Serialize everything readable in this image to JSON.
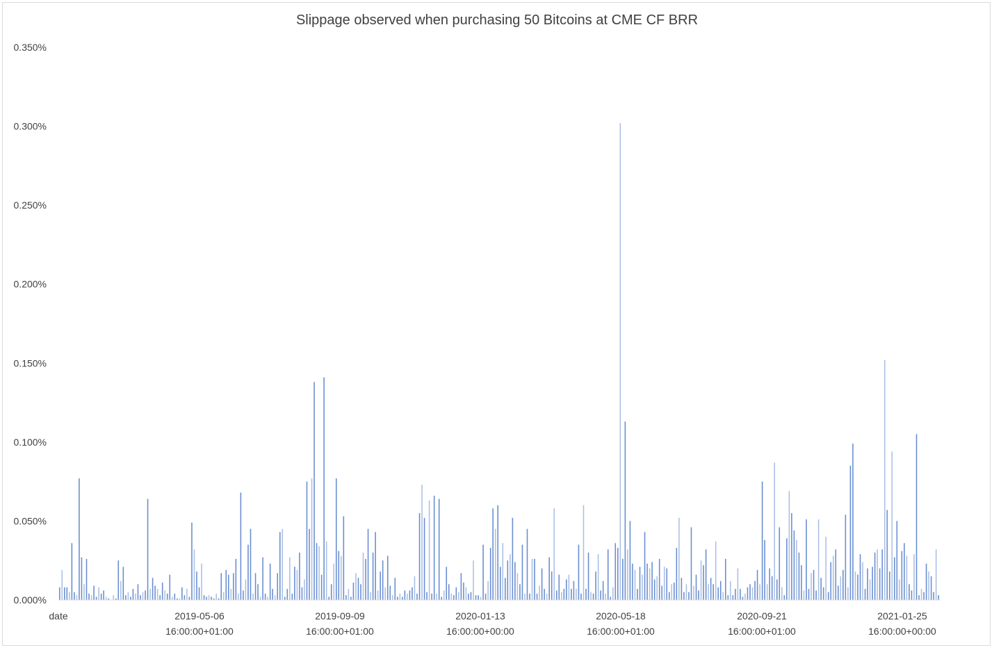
{
  "chart_data": {
    "type": "bar",
    "title": "Slippage observed when purchasing 50 Bitcoins at CME CF BRR",
    "xlabel": "",
    "ylabel": "",
    "ylim": [
      0,
      0.35
    ],
    "y_unit": "%",
    "y_ticks": [
      "0.000%",
      "0.050%",
      "0.100%",
      "0.150%",
      "0.200%",
      "0.250%",
      "0.300%",
      "0.350%"
    ],
    "x_ticks": [
      {
        "line1": "date",
        "line2": ""
      },
      {
        "line1": "2019-05-06",
        "line2": "16:00:00+01:00"
      },
      {
        "line1": "2019-09-09",
        "line2": "16:00:00+01:00"
      },
      {
        "line1": "2020-01-13",
        "line2": "16:00:00+00:00"
      },
      {
        "line1": "2020-05-18",
        "line2": "16:00:00+01:00"
      },
      {
        "line1": "2020-09-21",
        "line2": "16:00:00+01:00"
      },
      {
        "line1": "2021-01-25",
        "line2": "16:00:00+00:00"
      }
    ],
    "grid": false,
    "legend": "none",
    "series_color": "#4472c4",
    "values": [
      0.008,
      0.019,
      0.008,
      0.008,
      0.005,
      0.036,
      0.005,
      0.003,
      0.077,
      0.027,
      0.01,
      0.026,
      0.004,
      0.003,
      0.009,
      0.002,
      0.008,
      0.004,
      0.006,
      0.002,
      0.001,
      0.0,
      0.003,
      0.001,
      0.025,
      0.012,
      0.021,
      0.003,
      0.005,
      0.002,
      0.007,
      0.004,
      0.01,
      0.003,
      0.005,
      0.006,
      0.064,
      0.007,
      0.014,
      0.009,
      0.007,
      0.003,
      0.011,
      0.006,
      0.004,
      0.016,
      0.002,
      0.004,
      0.001,
      0.001,
      0.008,
      0.003,
      0.007,
      0.002,
      0.049,
      0.032,
      0.018,
      0.008,
      0.023,
      0.003,
      0.002,
      0.003,
      0.002,
      0.001,
      0.004,
      0.001,
      0.017,
      0.005,
      0.019,
      0.016,
      0.007,
      0.017,
      0.026,
      0.004,
      0.068,
      0.006,
      0.013,
      0.035,
      0.045,
      0.004,
      0.017,
      0.01,
      0.002,
      0.027,
      0.004,
      0.002,
      0.023,
      0.007,
      0.003,
      0.017,
      0.043,
      0.045,
      0.002,
      0.007,
      0.027,
      0.004,
      0.021,
      0.019,
      0.03,
      0.008,
      0.013,
      0.075,
      0.045,
      0.077,
      0.138,
      0.036,
      0.034,
      0.016,
      0.141,
      0.037,
      0.002,
      0.01,
      0.023,
      0.077,
      0.031,
      0.028,
      0.053,
      0.003,
      0.007,
      0.002,
      0.011,
      0.017,
      0.014,
      0.01,
      0.03,
      0.026,
      0.045,
      0.005,
      0.03,
      0.043,
      0.006,
      0.018,
      0.025,
      0.008,
      0.028,
      0.009,
      0.003,
      0.014,
      0.002,
      0.004,
      0.002,
      0.006,
      0.004,
      0.006,
      0.008,
      0.015,
      0.004,
      0.055,
      0.073,
      0.052,
      0.005,
      0.063,
      0.004,
      0.066,
      0.004,
      0.064,
      0.002,
      0.006,
      0.021,
      0.01,
      0.004,
      0.003,
      0.008,
      0.005,
      0.017,
      0.011,
      0.008,
      0.004,
      0.005,
      0.025,
      0.003,
      0.003,
      0.002,
      0.035,
      0.004,
      0.012,
      0.033,
      0.058,
      0.045,
      0.06,
      0.021,
      0.036,
      0.014,
      0.025,
      0.029,
      0.052,
      0.024,
      0.017,
      0.01,
      0.035,
      0.004,
      0.045,
      0.004,
      0.026,
      0.026,
      0.004,
      0.009,
      0.02,
      0.007,
      0.004,
      0.027,
      0.018,
      0.058,
      0.006,
      0.016,
      0.005,
      0.007,
      0.013,
      0.016,
      0.007,
      0.012,
      0.007,
      0.035,
      0.004,
      0.06,
      0.007,
      0.03,
      0.005,
      0.004,
      0.018,
      0.029,
      0.006,
      0.012,
      0.004,
      0.032,
      0.002,
      0.008,
      0.036,
      0.033,
      0.302,
      0.026,
      0.113,
      0.032,
      0.05,
      0.023,
      0.019,
      0.007,
      0.021,
      0.016,
      0.043,
      0.023,
      0.02,
      0.024,
      0.013,
      0.015,
      0.026,
      0.009,
      0.021,
      0.02,
      0.005,
      0.01,
      0.011,
      0.033,
      0.052,
      0.014,
      0.005,
      0.01,
      0.005,
      0.046,
      0.009,
      0.016,
      0.006,
      0.025,
      0.022,
      0.032,
      0.01,
      0.014,
      0.01,
      0.037,
      0.008,
      0.012,
      0.005,
      0.026,
      0.003,
      0.012,
      0.003,
      0.007,
      0.02,
      0.007,
      0.002,
      0.004,
      0.008,
      0.01,
      0.008,
      0.012,
      0.019,
      0.01,
      0.075,
      0.038,
      0.01,
      0.02,
      0.015,
      0.087,
      0.013,
      0.046,
      0.008,
      0.003,
      0.039,
      0.069,
      0.055,
      0.044,
      0.038,
      0.03,
      0.022,
      0.006,
      0.051,
      0.007,
      0.017,
      0.019,
      0.006,
      0.051,
      0.014,
      0.008,
      0.04,
      0.005,
      0.024,
      0.028,
      0.032,
      0.009,
      0.015,
      0.019,
      0.054,
      0.008,
      0.085,
      0.099,
      0.018,
      0.016,
      0.029,
      0.024,
      0.007,
      0.02,
      0.013,
      0.021,
      0.03,
      0.032,
      0.02,
      0.032,
      0.152,
      0.057,
      0.018,
      0.094,
      0.027,
      0.05,
      0.013,
      0.031,
      0.036,
      0.028,
      0.01,
      0.006,
      0.029,
      0.105,
      0.003,
      0.007,
      0.005,
      0.023,
      0.018,
      0.015,
      0.005,
      0.032,
      0.003
    ]
  }
}
